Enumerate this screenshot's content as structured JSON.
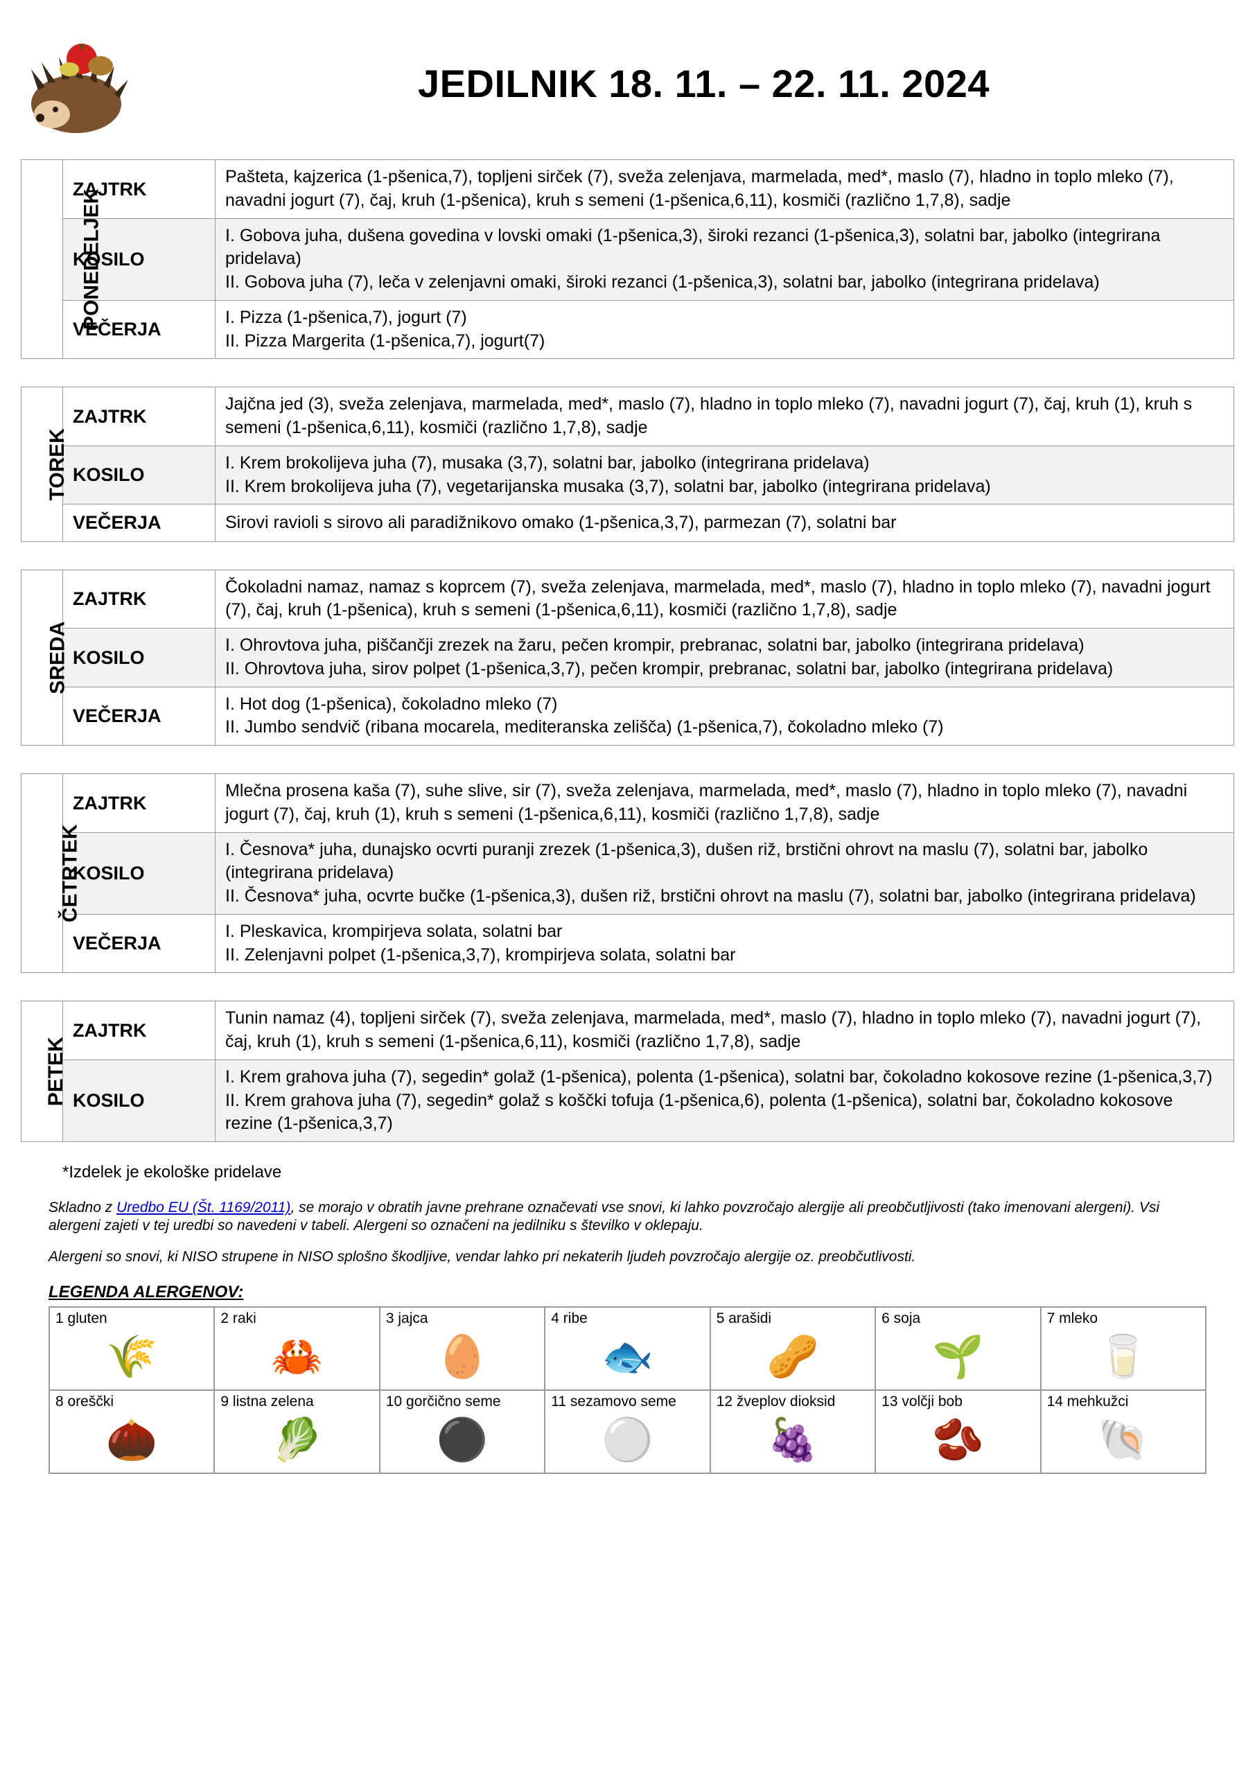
{
  "title": "JEDILNIK 18. 11. – 22. 11. 2024",
  "meal_labels": {
    "breakfast": "ZAJTRK",
    "lunch": "KOSILO",
    "dinner": "VEČERJA"
  },
  "days": [
    {
      "name": "PONEDELJEK",
      "dinner_has": true,
      "breakfast": "Pašteta, kajzerica <span class=sm>(1-pšenica,7)</span>, topljeni sirček <span class=sm>(7)</span>, sveža zelenjava, marmelada, med*, maslo <span class=sm>(7)</span>, hladno in toplo mleko <span class=sm>(7)</span>, navadni jogurt <span class=sm>(7)</span>, čaj, kruh <span class=sm>(1-pšenica)</span>, kruh s semeni <span class=sm>(1-pšenica,6,11)</span>, kosmiči <span class=sm>(različno 1,7,8)</span>, sadje",
      "lunch": "I.  Gobova juha, dušena govedina v lovski omaki <span class=sm>(1-pšenica,3)</span>, široki rezanci <span class=sm>(1-pšenica,3)</span>, solatni bar, jabolko <span class=sm>(integrirana pridelava)</span><br>II.  Gobova juha <span class=sm>(7)</span>,  leča v zelenjavni omaki, široki rezanci <span class=sm>(1-pšenica,3)</span>, solatni bar, jabolko <span class=sm>(integrirana pridelava)</span>",
      "dinner": "I.  Pizza <span class=sm>(1-pšenica,7)</span>, jogurt <span class=sm>(7)</span><br>II. Pizza Margerita <span class=sm>(1-pšenica,7)</span>, jogurt<span class=sm>(7)</span>"
    },
    {
      "name": "TOREK",
      "dinner_has": true,
      "breakfast": "Jajčna jed <span class=sm>(3)</span>, sveža zelenjava, marmelada, med*, maslo <span class=sm>(7)</span>, hladno in toplo mleko <span class=sm>(7)</span>, navadni jogurt <span class=sm>(7)</span>, čaj, kruh <span class=sm>(1)</span>, kruh s semeni <span class=sm>(1-pšenica,6,11)</span>, kosmiči <span class=sm>(različno 1,7,8)</span>, sadje",
      "lunch": "I.  Krem brokolijeva juha <span class=sm>(7)</span>,  musaka <span class=sm>(3,7)</span>, solatni bar, jabolko <span class=sm>(integrirana pridelava)</span><br>II.  Krem brokolijeva juha <span class=sm>(7)</span>,  vegetarijanska musaka <span class=sm>(3,7)</span>, solatni bar, jabolko <span class=sm>(integrirana pridelava)</span>",
      "dinner": "Sirovi ravioli s sirovo ali paradižnikovo omako <span class=sm>(1-pšenica,3,7)</span>, parmezan <span class=sm>(7)</span>, solatni bar"
    },
    {
      "name": "SREDA",
      "dinner_has": true,
      "breakfast": "Čokoladni namaz, namaz s koprcem <span class=sm>(7)</span>, sveža zelenjava, marmelada, med*, maslo <span class=sm>(7)</span>, hladno in toplo mleko <span class=sm>(7)</span>, navadni jogurt <span class=sm>(7)</span>, čaj, kruh <span class=sm>(1-pšenica)</span>, kruh s semeni <span class=sm>(1-pšenica,6,11)</span>, kosmiči <span class=sm>(različno 1,7,8)</span>, sadje",
      "lunch": "I. Ohrovtova juha,  piščančji zrezek na žaru, pečen krompir, prebranac, solatni bar, jabolko <span class=sm>(integrirana pridelava)</span><br>II. Ohrovtova juha, sirov polpet <span class=sm>(1-pšenica,3,7)</span>, pečen krompir, prebranac, solatni bar, jabolko <span class=sm>(integrirana pridelava)</span>",
      "dinner": "I.  Hot dog <span class=sm>(1-pšenica)</span>, čokoladno mleko <span class=sm>(7)</span><br>II.  Jumbo sendvič <span class=sm>(ribana mocarela, mediteranska zelišča) (1-pšenica,7)</span>, čokoladno mleko <span class=sm>(7)</span>"
    },
    {
      "name": "ČETRTEK",
      "dinner_has": true,
      "breakfast": "Mlečna prosena kaša <span class=sm>(7)</span>, suhe slive, sir <span class=sm>(7)</span>, sveža zelenjava, marmelada, med*, maslo <span class=sm>(7)</span>, hladno in toplo mleko <span class=sm>(7)</span>, navadni jogurt <span class=sm>(7)</span>, čaj, kruh <span class=sm>(1)</span>, kruh s semeni <span class=sm>(1-pšenica,6,11)</span>, kosmiči <span class=sm>(različno 1,7,8)</span>, sadje",
      "lunch": "I. Česnova* juha,  dunajsko ocvrti puranji zrezek <span class=sm>(1-pšenica,3)</span>, dušen riž, brstični ohrovt na maslu <span class=sm>(7)</span>,  solatni bar, jabolko <span class=sm>(integrirana pridelava)</span><br>II. Česnova* juha,  ocvrte bučke <span class=sm>(1-pšenica,3)</span>, dušen riž, brstični ohrovt na maslu <span class=sm>(7)</span>,  solatni bar, jabolko <span class=sm>(integrirana pridelava)</span>",
      "dinner": "I.  Pleskavica, krompirjeva solata, solatni bar<br>II. Zelenjavni polpet <span class=sm>(1-pšenica,3,7)</span>, krompirjeva solata, solatni bar"
    },
    {
      "name": "PETEK",
      "dinner_has": false,
      "breakfast": "Tunin namaz <span class=sm>(4)</span>, topljeni sirček <span class=sm>(7)</span>, sveža zelenjava, marmelada, med*, maslo <span class=sm>(7)</span>, hladno in toplo mleko <span class=sm>(7)</span>, navadni jogurt <span class=sm>(7)</span>, čaj, kruh <span class=sm>(1)</span>, kruh s semeni <span class=sm>(1-pšenica,6,11)</span>, kosmiči <span class=sm>(različno 1,7,8)</span>, sadje",
      "lunch": "I.  Krem grahova juha <span class=sm>(7)</span>, segedin* golaž <span class=sm>(1-pšenica)</span>, polenta <span class=sm>(1-pšenica)</span>, solatni bar, čokoladno kokosove rezine <span class=sm>(1-pšenica,3,7)</span><br>II.  Krem grahova juha <span class=sm>(7)</span>, segedin* golaž s koščki tofuja <span class=sm>(1-pšenica,6)</span>, polenta <span class=sm>(1-pšenica)</span>, solatni bar, čokoladno kokosove rezine <span class=sm>(1-pšenica,3,7)</span>",
      "dinner": ""
    }
  ],
  "footnote": "*Izdelek je ekološke pridelave",
  "disclaimer1_pre": "Skladno z  ",
  "disclaimer1_link": "Uredbo EU (Št. 1169/2011)",
  "disclaimer1_post": ", se morajo v obratih javne prehrane označevati vse snovi, ki lahko povzročajo alergije ali preobčutljivosti (tako imenovani alergeni). Vsi alergeni zajeti v tej uredbi so navedeni v tabeli. Alergeni so označeni na jedilniku s številko v oklepaju.",
  "disclaimer2": "Alergeni so snovi, ki NISO strupene in NISO splošno škodljive, vendar lahko pri nekaterih ljudeh povzročajo alergije oz. preobčutlivosti.",
  "legend_title": "LEGENDA ALERGENOV:",
  "allergens": [
    {
      "n": "1 gluten",
      "glyph": "🌾"
    },
    {
      "n": "2 raki",
      "glyph": "🦀"
    },
    {
      "n": "3 jajca",
      "glyph": "🥚"
    },
    {
      "n": "4 ribe",
      "glyph": "🐟"
    },
    {
      "n": "5 arašidi",
      "glyph": "🥜"
    },
    {
      "n": "6 soja",
      "glyph": "🌱"
    },
    {
      "n": "7 mleko",
      "glyph": "🥛"
    },
    {
      "n": "8 oreščki",
      "glyph": "🌰"
    },
    {
      "n": "9 listna zelena",
      "glyph": "🥬"
    },
    {
      "n": "10 gorčično seme",
      "glyph": "⚫"
    },
    {
      "n": "11 sezamovo seme",
      "glyph": "⚪"
    },
    {
      "n": "12 žveplov dioksid",
      "glyph": "🍇"
    },
    {
      "n": "13 volčji bob",
      "glyph": "🫘"
    },
    {
      "n": "14 mehkužci",
      "glyph": "🐚"
    }
  ]
}
